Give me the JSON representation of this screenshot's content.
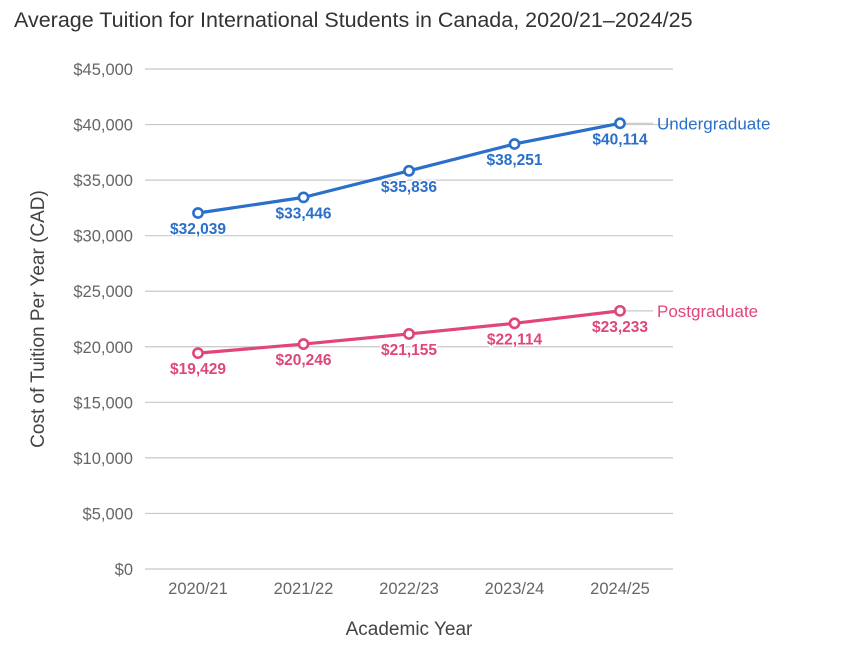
{
  "chart_data": {
    "type": "line",
    "title": "Average Tuition for International Students in Canada, 2020/21–2024/25",
    "xlabel": "Academic Year",
    "ylabel": "Cost of Tuition Per Year (CAD)",
    "categories": [
      "2020/21",
      "2021/22",
      "2022/23",
      "2023/24",
      "2024/25"
    ],
    "ylim": [
      0,
      45000
    ],
    "y_ticks": [
      0,
      5000,
      10000,
      15000,
      20000,
      25000,
      30000,
      35000,
      40000,
      45000
    ],
    "y_tick_labels": [
      "$0",
      "$5,000",
      "$10,000",
      "$15,000",
      "$20,000",
      "$25,000",
      "$30,000",
      "$35,000",
      "$40,000",
      "$45,000"
    ],
    "grid": "horizontal",
    "legend": "end-of-line labels",
    "series": [
      {
        "name": "Undergraduate",
        "color": "#2a6fc9",
        "values": [
          32039,
          33446,
          35836,
          38251,
          40114
        ],
        "data_labels": [
          "$32,039",
          "$33,446",
          "$35,836",
          "$38,251",
          "$40,114"
        ]
      },
      {
        "name": "Postgraduate",
        "color": "#e0457b",
        "values": [
          19429,
          20246,
          21155,
          22114,
          23233
        ],
        "data_labels": [
          "$19,429",
          "$20,246",
          "$21,155",
          "$22,114",
          "$23,233"
        ]
      }
    ],
    "colors": {
      "grid": "#c8c8c8",
      "axis_text": "#666666",
      "title_text": "#333333"
    }
  }
}
